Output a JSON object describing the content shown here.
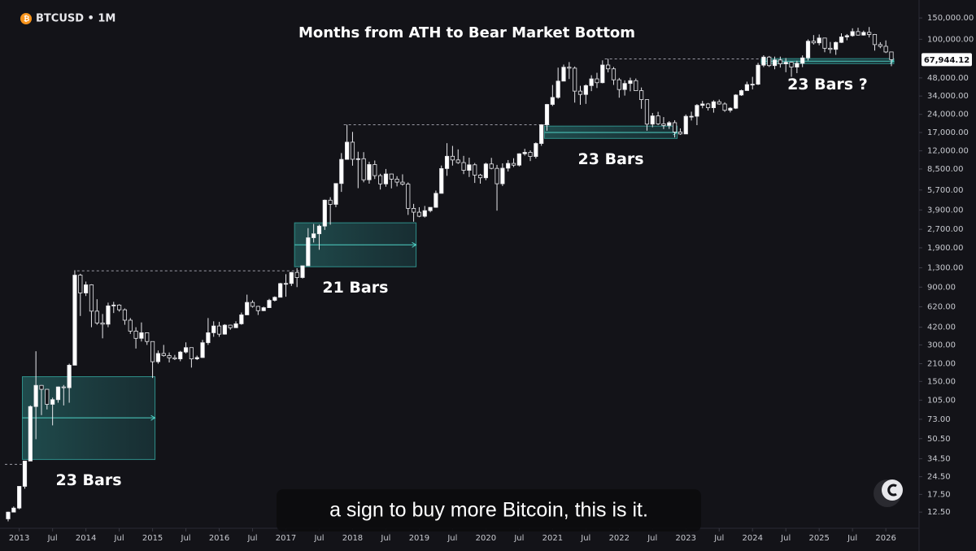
{
  "chart_data": {
    "type": "candlestick",
    "symbol": "BTCUSD • 1M",
    "title": "Months from ATH to Bear Market Bottom",
    "caption": "a sign to buy more Bitcoin, this is it.",
    "log_scale": true,
    "grid": false,
    "up_color": "#ffffff",
    "down_color": "#131318",
    "x": [
      "2012-11",
      "2012-12",
      "2013-01",
      "2013-02",
      "2013-03",
      "2013-04",
      "2013-05",
      "2013-06",
      "2013-07",
      "2013-08",
      "2013-09",
      "2013-10",
      "2013-11",
      "2013-12",
      "2014-01",
      "2014-02",
      "2014-03",
      "2014-04",
      "2014-05",
      "2014-06",
      "2014-07",
      "2014-08",
      "2014-09",
      "2014-10",
      "2014-11",
      "2014-12",
      "2015-01",
      "2015-02",
      "2015-03",
      "2015-04",
      "2015-05",
      "2015-06",
      "2015-07",
      "2015-08",
      "2015-09",
      "2015-10",
      "2015-11",
      "2015-12",
      "2016-01",
      "2016-02",
      "2016-03",
      "2016-04",
      "2016-05",
      "2016-06",
      "2016-07",
      "2016-08",
      "2016-09",
      "2016-10",
      "2016-11",
      "2016-12",
      "2017-01",
      "2017-02",
      "2017-03",
      "2017-04",
      "2017-05",
      "2017-06",
      "2017-07",
      "2017-08",
      "2017-09",
      "2017-10",
      "2017-11",
      "2017-12",
      "2018-01",
      "2018-02",
      "2018-03",
      "2018-04",
      "2018-05",
      "2018-06",
      "2018-07",
      "2018-08",
      "2018-09",
      "2018-10",
      "2018-11",
      "2018-12",
      "2019-01",
      "2019-02",
      "2019-03",
      "2019-04",
      "2019-05",
      "2019-06",
      "2019-07",
      "2019-08",
      "2019-09",
      "2019-10",
      "2019-11",
      "2019-12",
      "2020-01",
      "2020-02",
      "2020-03",
      "2020-04",
      "2020-05",
      "2020-06",
      "2020-07",
      "2020-08",
      "2020-09",
      "2020-10",
      "2020-11",
      "2020-12",
      "2021-01",
      "2021-02",
      "2021-03",
      "2021-04",
      "2021-05",
      "2021-06",
      "2021-07",
      "2021-08",
      "2021-09",
      "2021-10",
      "2021-11",
      "2021-12",
      "2022-01",
      "2022-02",
      "2022-03",
      "2022-04",
      "2022-05",
      "2022-06",
      "2022-07",
      "2022-08",
      "2022-09",
      "2022-10",
      "2022-11",
      "2022-12",
      "2023-01",
      "2023-02",
      "2023-03",
      "2023-04",
      "2023-05",
      "2023-06",
      "2023-07",
      "2023-08",
      "2023-09",
      "2023-10",
      "2023-11",
      "2023-12",
      "2024-01",
      "2024-02",
      "2024-03",
      "2024-04",
      "2024-05",
      "2024-06",
      "2024-07",
      "2024-08",
      "2024-09",
      "2024-10",
      "2024-11",
      "2024-12",
      "2025-01",
      "2025-02",
      "2025-03",
      "2025-04",
      "2025-05",
      "2025-06",
      "2025-07",
      "2025-08",
      "2025-09",
      "2025-10",
      "2025-11",
      "2025-12",
      "2026-01",
      "2026-02"
    ],
    "open": [
      11,
      12.5,
      13.5,
      20.4,
      33,
      93,
      139,
      129,
      97,
      106,
      135,
      133,
      204,
      1130,
      805,
      940,
      570,
      455,
      445,
      630,
      640,
      585,
      480,
      390,
      340,
      378,
      320,
      218,
      255,
      245,
      235,
      230,
      262,
      285,
      230,
      236,
      313,
      378,
      430,
      368,
      437,
      416,
      448,
      531,
      673,
      624,
      575,
      609,
      700,
      742,
      963,
      965,
      1190,
      1080,
      1350,
      2300,
      2480,
      2870,
      4700,
      4340,
      6450,
      10200,
      14150,
      10220,
      10330,
      6920,
      9250,
      7490,
      6400,
      7730,
      7010,
      6620,
      6370,
      4020,
      3740,
      3460,
      3850,
      4100,
      5350,
      8570,
      10820,
      10090,
      9600,
      8290,
      9200,
      7570,
      7190,
      9350,
      8600,
      6420,
      8630,
      9450,
      9140,
      11350,
      11660,
      10780,
      13800,
      19700,
      28990,
      33110,
      45140,
      58800,
      57750,
      37330,
      35040,
      41460,
      47130,
      43820,
      61320,
      57000,
      46300,
      38480,
      43190,
      45540,
      37640,
      31790,
      19930,
      23300,
      20050,
      19430,
      20490,
      17170,
      16540,
      23130,
      23150,
      28480,
      29250,
      27220,
      30480,
      29230,
      25940,
      26970,
      34660,
      37720,
      42280,
      42580,
      61130,
      71330,
      60640,
      67490,
      62680,
      64620,
      58970,
      63330,
      70220,
      96410,
      93430,
      102400,
      84350,
      82550,
      94200,
      104600,
      107100,
      115760,
      108250,
      114050,
      109600,
      90400,
      87500,
      78600
    ],
    "high": [
      12.6,
      13.9,
      20.5,
      33,
      95,
      266,
      140,
      130,
      110,
      136,
      140,
      210,
      1240,
      1160,
      1000,
      950,
      715,
      540,
      670,
      680,
      650,
      600,
      500,
      420,
      460,
      380,
      320,
      270,
      300,
      260,
      248,
      268,
      315,
      285,
      245,
      330,
      500,
      470,
      465,
      445,
      440,
      470,
      555,
      780,
      700,
      630,
      620,
      720,
      755,
      975,
      1150,
      1200,
      1290,
      1350,
      2760,
      2990,
      2950,
      4750,
      4970,
      6470,
      11500,
      19700,
      17200,
      11800,
      11700,
      9760,
      9990,
      7760,
      8500,
      7760,
      7410,
      7680,
      6590,
      4380,
      4110,
      4210,
      4100,
      5640,
      9080,
      13880,
      13180,
      12330,
      10900,
      10540,
      9520,
      7750,
      9570,
      10500,
      9190,
      9460,
      10070,
      10430,
      11450,
      12470,
      12100,
      14100,
      19900,
      29300,
      41950,
      58350,
      61800,
      64850,
      59600,
      41300,
      42400,
      50500,
      52900,
      67000,
      69000,
      59100,
      48000,
      45800,
      48200,
      47450,
      40000,
      31950,
      24650,
      25200,
      22800,
      21100,
      21470,
      18400,
      23960,
      25250,
      29200,
      31000,
      29820,
      31390,
      31800,
      30200,
      27480,
      35200,
      38420,
      44700,
      48970,
      63900,
      73800,
      72800,
      71980,
      71950,
      70000,
      65100,
      66500,
      73600,
      99800,
      108300,
      109600,
      102500,
      95000,
      95700,
      111980,
      110400,
      123200,
      124500,
      117900,
      126200,
      110600,
      94600,
      97900,
      79000
    ],
    "low": [
      10.5,
      12.5,
      13.2,
      19.5,
      33,
      50,
      79,
      88,
      65,
      100,
      95,
      100,
      204,
      520,
      760,
      420,
      440,
      340,
      420,
      550,
      565,
      440,
      370,
      280,
      320,
      300,
      160,
      210,
      240,
      215,
      225,
      220,
      255,
      195,
      225,
      235,
      300,
      350,
      350,
      365,
      400,
      415,
      440,
      530,
      610,
      530,
      570,
      605,
      685,
      740,
      750,
      920,
      900,
      1060,
      1350,
      2100,
      1830,
      2670,
      2950,
      4110,
      5500,
      10200,
      9050,
      5900,
      6600,
      6430,
      7030,
      5750,
      6070,
      5880,
      6100,
      6200,
      3550,
      3120,
      3400,
      3380,
      3730,
      4070,
      5330,
      7460,
      9070,
      9360,
      7710,
      7300,
      6520,
      6430,
      6870,
      8450,
      3850,
      6150,
      8100,
      8820,
      8930,
      10960,
      9880,
      10370,
      13200,
      17600,
      28130,
      32300,
      45000,
      47000,
      30000,
      28800,
      29300,
      37330,
      39600,
      43300,
      53300,
      42000,
      32950,
      34300,
      37200,
      37700,
      26700,
      17600,
      18800,
      19600,
      18150,
      18200,
      15480,
      16260,
      16500,
      21350,
      19550,
      26940,
      25800,
      24800,
      28860,
      25170,
      24900,
      26560,
      34100,
      37600,
      38550,
      41880,
      59000,
      59100,
      56550,
      58400,
      53500,
      49000,
      52550,
      58900,
      66800,
      90500,
      89250,
      78200,
      76600,
      74400,
      93300,
      98200,
      105100,
      107300,
      107300,
      103500,
      80600,
      84400,
      77000,
      60000
    ],
    "close": [
      12.5,
      13.5,
      20.4,
      33,
      93,
      139,
      129,
      97,
      106,
      135,
      133,
      204,
      1130,
      805,
      940,
      570,
      455,
      445,
      630,
      640,
      585,
      480,
      390,
      340,
      378,
      320,
      218,
      255,
      245,
      235,
      230,
      262,
      285,
      230,
      236,
      313,
      378,
      430,
      368,
      437,
      416,
      448,
      531,
      673,
      624,
      575,
      609,
      700,
      742,
      963,
      965,
      1190,
      1080,
      1350,
      2300,
      2480,
      2870,
      4700,
      4340,
      6450,
      10200,
      14150,
      10220,
      10330,
      6920,
      9250,
      7490,
      6400,
      7730,
      7010,
      6620,
      6370,
      4020,
      3740,
      3460,
      3850,
      4100,
      5350,
      8570,
      10820,
      10090,
      9600,
      8290,
      9200,
      7570,
      7190,
      9350,
      8600,
      6420,
      8630,
      9450,
      9140,
      11350,
      11660,
      10780,
      13800,
      19700,
      28990,
      33110,
      45140,
      58800,
      57750,
      37330,
      35040,
      41460,
      47130,
      43820,
      61320,
      57000,
      46300,
      38480,
      43190,
      45540,
      37640,
      31790,
      19930,
      23300,
      20050,
      19430,
      20490,
      17170,
      16540,
      23130,
      23150,
      28480,
      29250,
      27220,
      30480,
      29230,
      25940,
      26970,
      34660,
      37720,
      42280,
      42580,
      61130,
      71330,
      60640,
      67490,
      62680,
      64620,
      58970,
      63330,
      70220,
      96410,
      93430,
      102400,
      84350,
      82550,
      94200,
      104600,
      107100,
      115760,
      108250,
      114050,
      109600,
      90400,
      87500,
      78600,
      67944.12
    ],
    "last_price": {
      "value": 67944.12,
      "label": "67,944.12"
    },
    "ylim": [
      9.2,
      211000
    ],
    "yticks": [
      {
        "value": 150000,
        "label": "150,000.00"
      },
      {
        "value": 100000,
        "label": "100,000.00"
      },
      {
        "value": 48000,
        "label": "48,000.00"
      },
      {
        "value": 34000,
        "label": "34,000.00"
      },
      {
        "value": 24000,
        "label": "24,000.00"
      },
      {
        "value": 17000,
        "label": "17,000.00"
      },
      {
        "value": 12000,
        "label": "12,000.00"
      },
      {
        "value": 8500,
        "label": "8,500.00"
      },
      {
        "value": 5700,
        "label": "5,700.00"
      },
      {
        "value": 3900,
        "label": "3,900.00"
      },
      {
        "value": 2700,
        "label": "2,700.00"
      },
      {
        "value": 1900,
        "label": "1,900.00"
      },
      {
        "value": 1300,
        "label": "1,300.00"
      },
      {
        "value": 900,
        "label": "900.00"
      },
      {
        "value": 620,
        "label": "620.00"
      },
      {
        "value": 420,
        "label": "420.00"
      },
      {
        "value": 300,
        "label": "300.00"
      },
      {
        "value": 210,
        "label": "210.00"
      },
      {
        "value": 150,
        "label": "150.00"
      },
      {
        "value": 105,
        "label": "105.00"
      },
      {
        "value": 73,
        "label": "73.00"
      },
      {
        "value": 50.5,
        "label": "50.50"
      },
      {
        "value": 34.5,
        "label": "34.50"
      },
      {
        "value": 24.5,
        "label": "24.50"
      },
      {
        "value": 17.5,
        "label": "17.50"
      },
      {
        "value": 12.5,
        "label": "12.50"
      }
    ],
    "xticks": [
      {
        "value": "2013-01",
        "label": "2013"
      },
      {
        "value": "2013-07",
        "label": "Jul"
      },
      {
        "value": "2014-01",
        "label": "2014"
      },
      {
        "value": "2014-07",
        "label": "Jul"
      },
      {
        "value": "2015-01",
        "label": "2015"
      },
      {
        "value": "2015-07",
        "label": "Jul"
      },
      {
        "value": "2016-01",
        "label": "2016"
      },
      {
        "value": "2016-07",
        "label": "Jul"
      },
      {
        "value": "2017-01",
        "label": "2017"
      },
      {
        "value": "2017-07",
        "label": "Jul"
      },
      {
        "value": "2018-01",
        "label": "2018"
      },
      {
        "value": "2018-07",
        "label": "Jul"
      },
      {
        "value": "2019-01",
        "label": "2019"
      },
      {
        "value": "2019-07",
        "label": "Jul"
      },
      {
        "value": "2020-01",
        "label": "2020"
      },
      {
        "value": "2020-07",
        "label": "Jul"
      },
      {
        "value": "2021-01",
        "label": "2021"
      },
      {
        "value": "2021-07",
        "label": "Jul"
      },
      {
        "value": "2022-01",
        "label": "2022"
      },
      {
        "value": "2022-07",
        "label": "Jul"
      },
      {
        "value": "2023-01",
        "label": "2023"
      },
      {
        "value": "2023-07",
        "label": "Jul"
      },
      {
        "value": "2024-01",
        "label": "2024"
      },
      {
        "value": "2024-07",
        "label": "Jul"
      },
      {
        "value": "2025-01",
        "label": "2025"
      },
      {
        "value": "2025-07",
        "label": "Jul"
      },
      {
        "value": "2026-01",
        "label": "2026"
      }
    ],
    "ranges": [
      {
        "label": "23 Bars",
        "ath": 31,
        "ath_start": "2012-11",
        "start": "2013-02",
        "end": "2015-01",
        "high": 164,
        "low": 34,
        "level": 75
      },
      {
        "label": "21 Bars",
        "ath": 1227,
        "ath_start": "2013-12",
        "start": "2017-03",
        "end": "2018-12",
        "high": 3055,
        "low": 1325,
        "level": 2010
      },
      {
        "label": "23 Bars",
        "ath": 19700,
        "ath_start": "2017-12",
        "start": "2020-12",
        "end": "2022-11",
        "high": 19200,
        "low": 15200,
        "level": 17000
      },
      {
        "label": "23 Bars ?",
        "ath": 68800,
        "ath_start": "2021-11",
        "start": "2024-03",
        "end": "2026-02",
        "high": 69200,
        "low": 63000,
        "level": 66000
      }
    ]
  }
}
